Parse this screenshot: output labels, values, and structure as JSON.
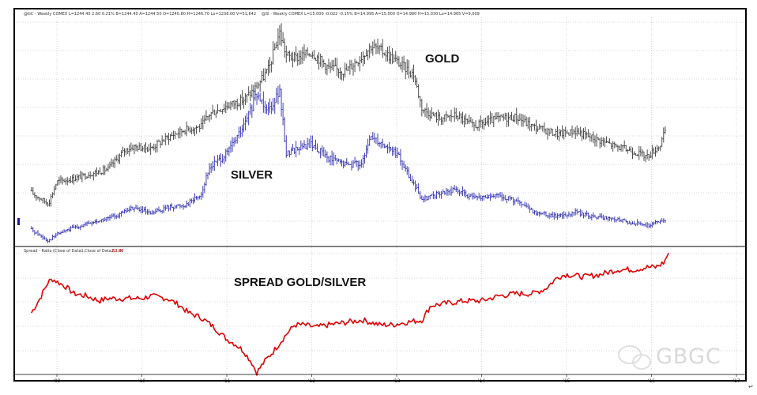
{
  "header": {
    "gold_info": "@GC - Weekly  COMEX  L=1244.40  2.60  0.21%  B=1244.40  A=1244.50  O=1240.80  H=1246.70  Lo=1238.00  V=51,642",
    "silver_info": "@SI - Weekly  COMEX  L=15.000  -0.022  -0.15%  B=14.995  A=15.000  O=14.980  H=15.030  Lo=14.965  V=9,009",
    "spread_info": "Spread - Ratio (Close of Data1,Close of Data2,1,0)",
    "spread_value": "82.90"
  },
  "annotations": {
    "gold": "GOLD",
    "silver": "SILVER",
    "spread": "SPREAD GOLD/SILVER"
  },
  "watermark": "GBGC",
  "colors": {
    "gold": "#3a3a3a",
    "silver": "#2b2bb0",
    "spread": "#e00000",
    "grid": "#b0b0b0",
    "frame": "#000000",
    "spread_value": "#e00000"
  },
  "chart_data": [
    {
      "type": "line",
      "title": "",
      "xlabel": "",
      "ylabel": "",
      "x_tick_labels": [
        "'09",
        "'10",
        "'11",
        "'12",
        "'13",
        "'14",
        "'15",
        "'16",
        "'17"
      ],
      "x": [
        2008.7,
        2008.9,
        2009.0,
        2009.2,
        2009.4,
        2009.6,
        2009.8,
        2009.9,
        2010.1,
        2010.3,
        2010.5,
        2010.7,
        2010.8,
        2011.0,
        2011.2,
        2011.35,
        2011.5,
        2011.62,
        2011.7,
        2011.8,
        2012.0,
        2012.2,
        2012.4,
        2012.6,
        2012.7,
        2012.85,
        2013.0,
        2013.2,
        2013.3,
        2013.5,
        2013.7,
        2013.9,
        2014.2,
        2014.4,
        2014.6,
        2014.9,
        2015.1,
        2015.3,
        2015.6,
        2015.8,
        2015.95,
        2016.1,
        2016.18
      ],
      "series": [
        {
          "name": "GOLD",
          "values": [
            830,
            760,
            900,
            920,
            950,
            980,
            1100,
            1120,
            1110,
            1180,
            1230,
            1250,
            1330,
            1380,
            1420,
            1500,
            1620,
            1850,
            1700,
            1680,
            1720,
            1620,
            1600,
            1700,
            1760,
            1720,
            1660,
            1580,
            1360,
            1300,
            1320,
            1250,
            1300,
            1310,
            1250,
            1200,
            1220,
            1180,
            1120,
            1090,
            1060,
            1130,
            1250
          ]
        },
        {
          "name": "SILVER",
          "values": [
            13,
            10.5,
            12,
            13.5,
            14.5,
            15.5,
            17,
            18,
            16.5,
            18,
            18.5,
            21,
            27,
            30,
            36,
            43,
            40,
            44,
            30,
            31,
            32,
            29,
            27.5,
            28,
            34,
            32,
            30,
            23,
            20,
            21,
            22,
            20,
            20.5,
            19.5,
            17,
            16,
            17,
            16,
            15.2,
            14.5,
            14,
            14.8,
            15
          ]
        }
      ]
    },
    {
      "type": "line",
      "title": "Spread - Ratio (Close of Data1,Close of Data2,1,0)",
      "xlabel": "",
      "ylabel": "",
      "x_tick_labels": [
        "'09",
        "'10",
        "'11",
        "'12",
        "'13",
        "'14",
        "'15",
        "'16",
        "'17"
      ],
      "x": [
        2008.7,
        2008.8,
        2008.9,
        2008.95,
        2009.0,
        2009.1,
        2009.2,
        2009.35,
        2009.5,
        2009.6,
        2009.8,
        2010.0,
        2010.1,
        2010.3,
        2010.45,
        2010.55,
        2010.7,
        2010.85,
        2011.0,
        2011.1,
        2011.2,
        2011.3,
        2011.35,
        2011.45,
        2011.55,
        2011.7,
        2011.8,
        2011.9,
        2012.05,
        2012.2,
        2012.4,
        2012.6,
        2012.8,
        2012.95,
        2013.1,
        2013.3,
        2013.4,
        2013.6,
        2013.8,
        2014.0,
        2014.2,
        2014.4,
        2014.6,
        2014.75,
        2014.9,
        2015.0,
        2015.2,
        2015.4,
        2015.6,
        2015.8,
        2015.95,
        2016.05,
        2016.15,
        2016.2
      ],
      "series": [
        {
          "name": "",
          "values": [
            58,
            64,
            71,
            72,
            71,
            69,
            66,
            65,
            63,
            64,
            64,
            64,
            65,
            64,
            61,
            58,
            56,
            52,
            47,
            45,
            42,
            37,
            33,
            38,
            42,
            49,
            53,
            53,
            52,
            53,
            54,
            55,
            53,
            53,
            54,
            55,
            61,
            62,
            63,
            63,
            65,
            66,
            66,
            68,
            73,
            74,
            73,
            74,
            76,
            76,
            77,
            77,
            79,
            83
          ]
        }
      ]
    }
  ]
}
